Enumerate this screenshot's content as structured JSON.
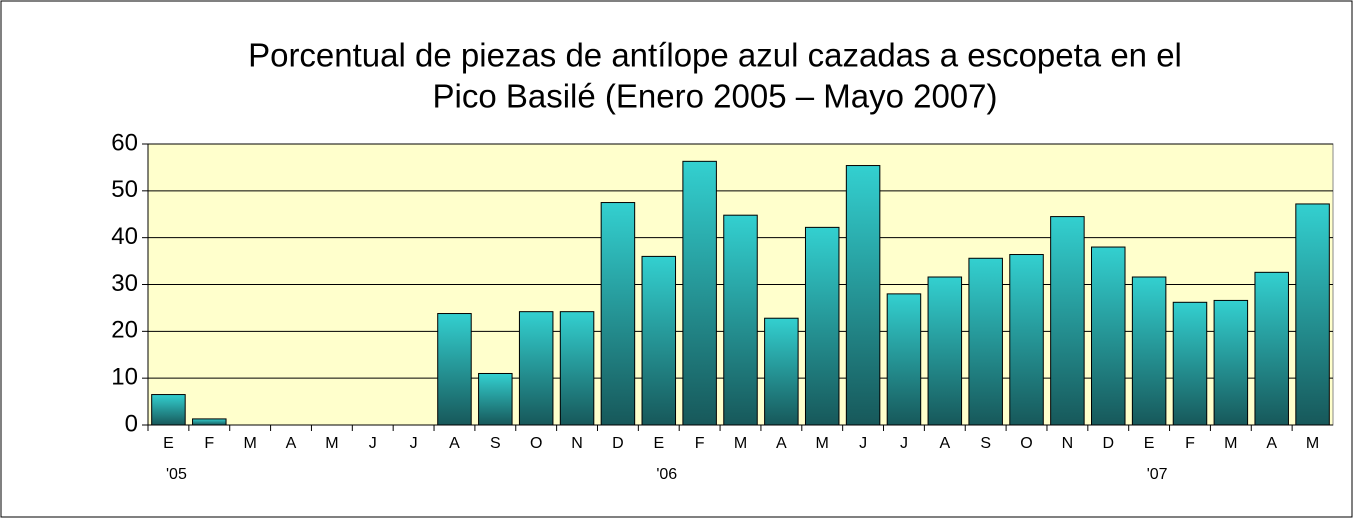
{
  "chart_data": {
    "type": "bar",
    "title": [
      "Porcentual de piezas de antílope azul cazadas a escopeta en el",
      "Pico Basilé (Enero 2005 – Mayo 2007)"
    ],
    "categories": [
      "E",
      "F",
      "M",
      "A",
      "M",
      "J",
      "J",
      "A",
      "S",
      "O",
      "N",
      "D",
      "E",
      "F",
      "M",
      "A",
      "M",
      "J",
      "J",
      "A",
      "S",
      "O",
      "N",
      "D",
      "E",
      "F",
      "M",
      "A",
      "M"
    ],
    "years": [
      "'05",
      null,
      null,
      null,
      null,
      null,
      null,
      null,
      null,
      null,
      null,
      null,
      "'06",
      null,
      null,
      null,
      null,
      null,
      null,
      null,
      null,
      null,
      null,
      null,
      "'07",
      null,
      null,
      null,
      null
    ],
    "values": [
      6.5,
      1.3,
      0,
      0,
      0,
      0,
      0,
      23.8,
      11,
      24.2,
      24.2,
      47.5,
      36,
      56.3,
      44.8,
      22.8,
      42.2,
      55.4,
      28,
      31.6,
      35.6,
      36.4,
      44.5,
      38,
      31.6,
      26.2,
      26.6,
      32.6,
      47.2
    ],
    "ylim": [
      0,
      60
    ],
    "yticks": [
      0,
      10,
      20,
      30,
      40,
      50,
      60
    ],
    "grid": true
  }
}
